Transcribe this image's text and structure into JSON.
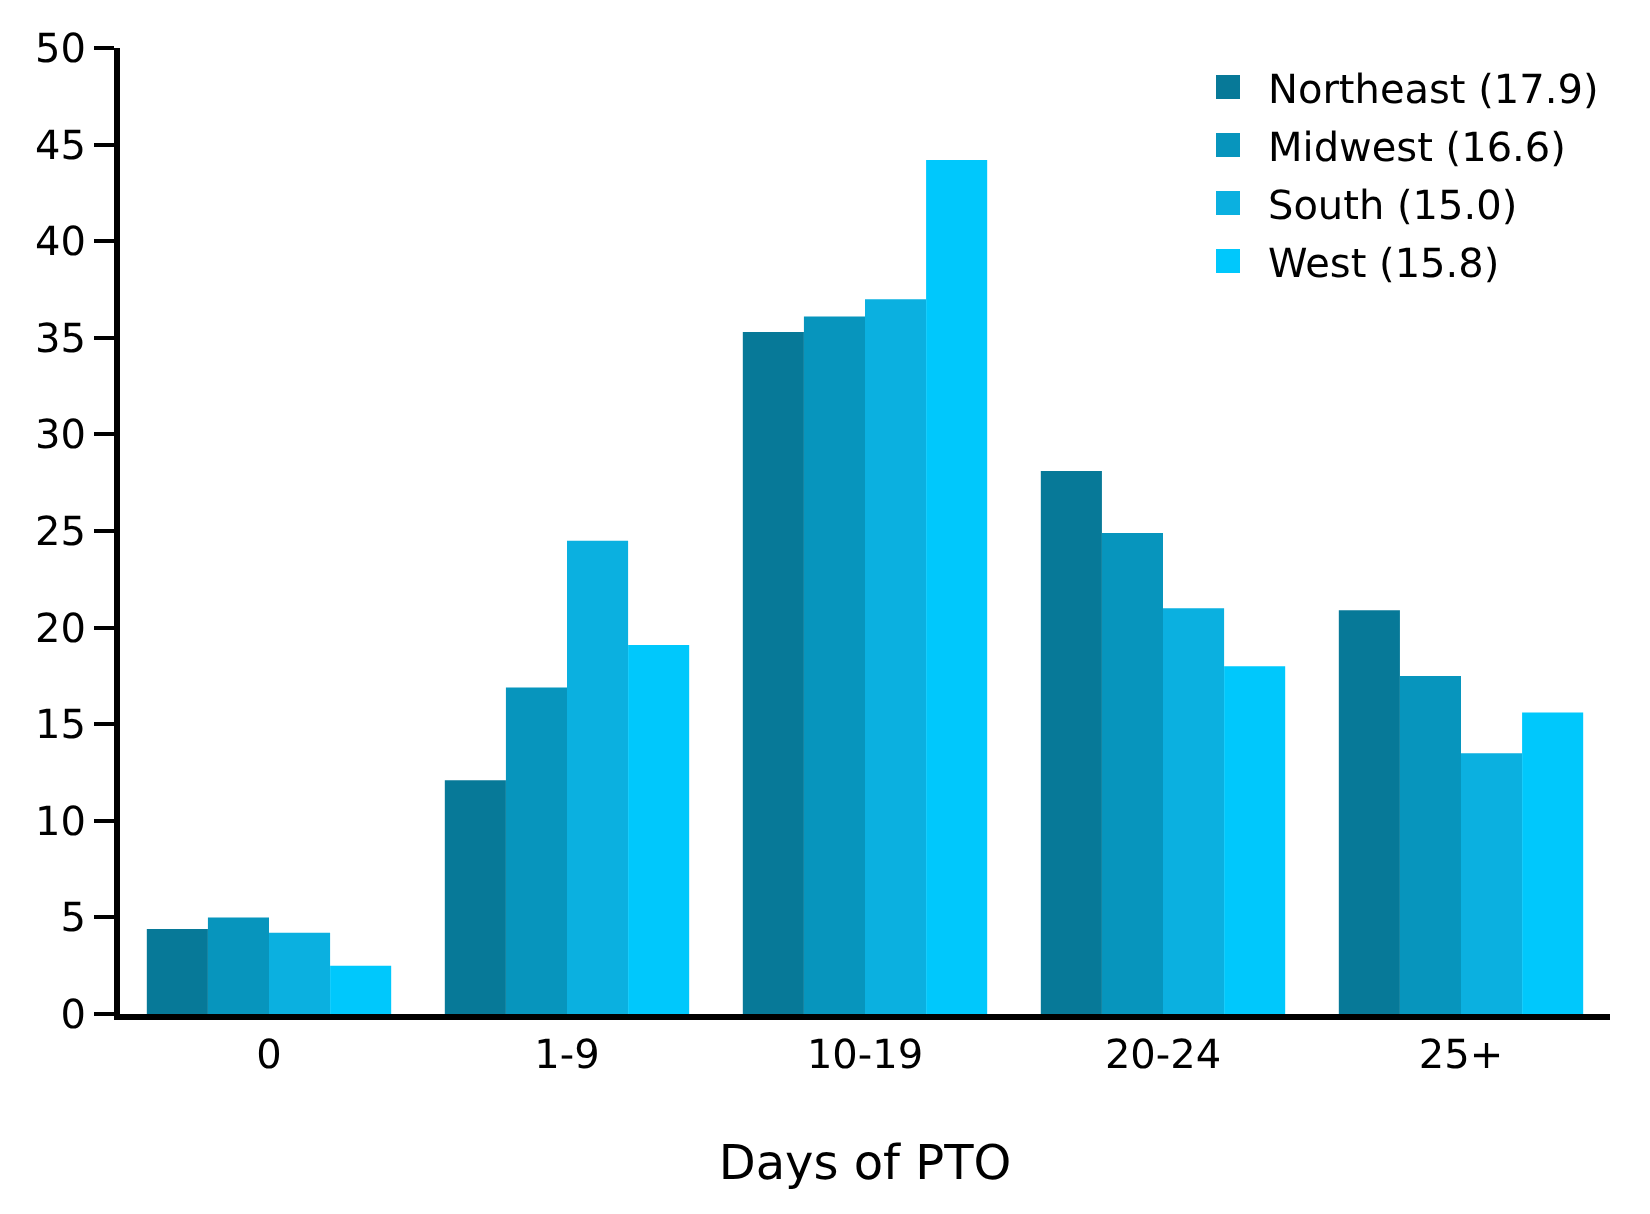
{
  "chart_data": {
    "type": "bar",
    "xlabel": "Days of PTO",
    "categories": [
      "0",
      "1-9",
      "10-19",
      "20-24",
      "25+"
    ],
    "series": [
      {
        "name": "Northeast (17.9)",
        "color": "#077998",
        "values": [
          4.4,
          12.1,
          35.3,
          28.1,
          20.9
        ]
      },
      {
        "name": "Midwest (16.6)",
        "color": "#0795bd",
        "values": [
          5.0,
          16.9,
          36.1,
          24.9,
          17.5
        ]
      },
      {
        "name": "South (15.0)",
        "color": "#0bb0e0",
        "values": [
          4.2,
          24.5,
          37.0,
          21.0,
          13.5
        ]
      },
      {
        "name": "West (15.8)",
        "color": "#00c8fc",
        "values": [
          2.5,
          19.1,
          44.2,
          18.0,
          15.6
        ]
      }
    ],
    "ylim": [
      0,
      50
    ],
    "yticks": [
      0,
      5,
      10,
      15,
      20,
      25,
      30,
      35,
      40,
      45,
      50
    ],
    "legend": "top right"
  }
}
